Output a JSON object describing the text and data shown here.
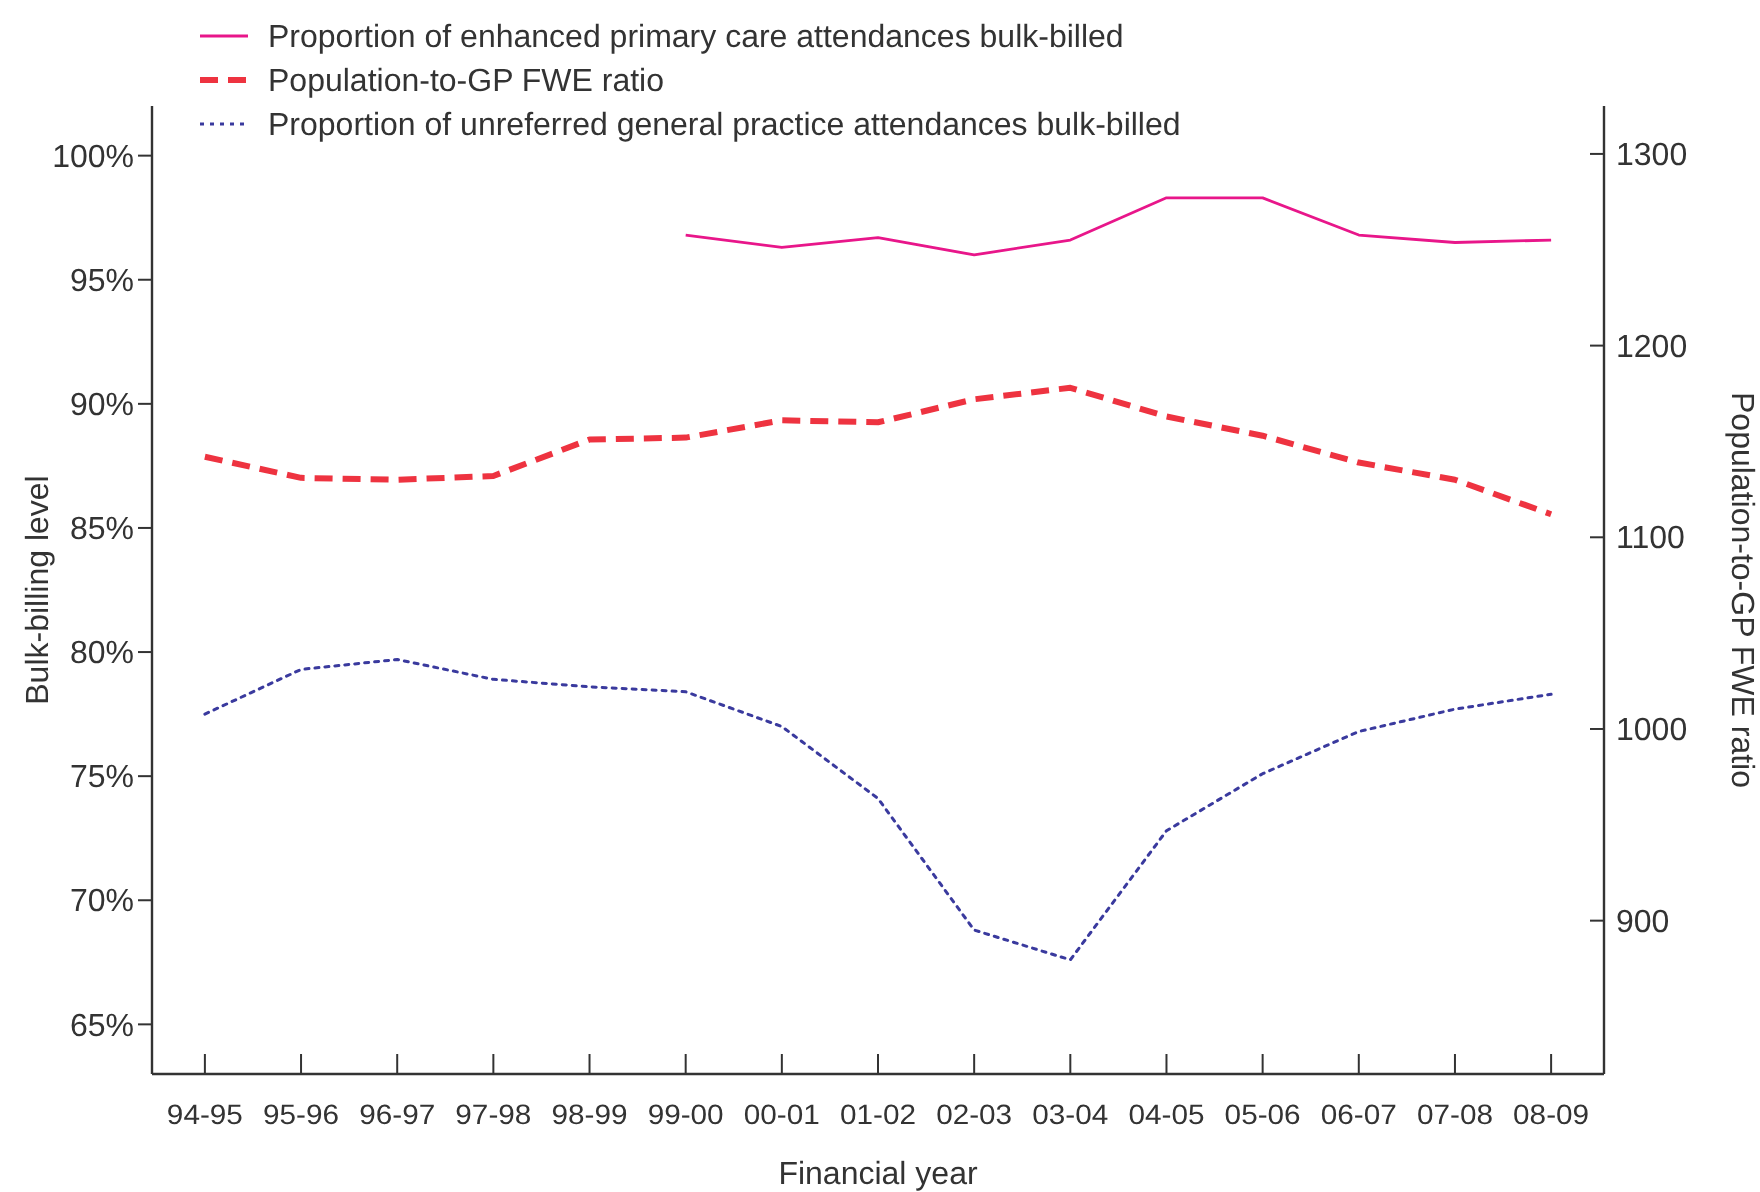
{
  "chart_data": {
    "type": "line",
    "xlabel": "Financial year",
    "ylabel": "Bulk-billing level",
    "y2label": "Population-to-GP FWE ratio",
    "categories": [
      "94-95",
      "95-96",
      "96-97",
      "97-98",
      "98-99",
      "99-00",
      "00-01",
      "01-02",
      "02-03",
      "03-04",
      "04-05",
      "05-06",
      "06-07",
      "07-08",
      "08-09"
    ],
    "ylim": [
      63,
      102
    ],
    "yticks": [
      {
        "value": 65,
        "label": "65%"
      },
      {
        "value": 70,
        "label": "70%"
      },
      {
        "value": 75,
        "label": "75%"
      },
      {
        "value": 80,
        "label": "80%"
      },
      {
        "value": 85,
        "label": "85%"
      },
      {
        "value": 90,
        "label": "90%"
      },
      {
        "value": 95,
        "label": "95%"
      },
      {
        "value": 100,
        "label": "100%"
      }
    ],
    "y2lim": [
      820,
      1325
    ],
    "y2ticks": [
      900,
      1000,
      1100,
      1200,
      1300
    ],
    "legend": "top left",
    "grid": false,
    "marker": "none",
    "series": [
      {
        "name": "Proportion of enhanced primary care attendances bulk-billed",
        "color": "#e8168a",
        "line_style": "solid",
        "values": [
          null,
          null,
          null,
          null,
          null,
          96.8,
          96.3,
          96.7,
          96.0,
          96.6,
          98.3,
          98.3,
          96.8,
          96.5,
          96.6
        ]
      },
      {
        "name": "Population-to-GP FWE ratio",
        "color": "#ee3340",
        "line_style": "dashed",
        "axis": "y2",
        "values": [
          1142,
          1131,
          1130,
          1132,
          1151,
          1152,
          1161,
          1160,
          1172,
          1178,
          1163,
          1153,
          1139,
          1130,
          1112
        ]
      },
      {
        "name": "Proportion of unreferred general practice attendances bulk-billed",
        "color": "#3a3a9e",
        "line_style": "dotted",
        "values": [
          77.5,
          79.3,
          79.7,
          78.9,
          78.6,
          78.4,
          77.0,
          74.1,
          68.8,
          67.6,
          72.8,
          75.1,
          76.8,
          77.7,
          78.3
        ]
      }
    ]
  }
}
